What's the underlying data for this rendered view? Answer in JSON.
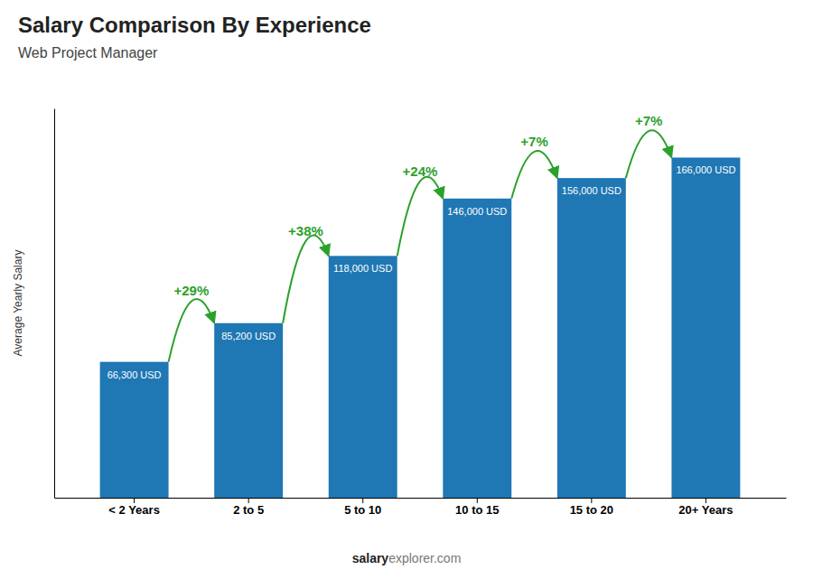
{
  "chart_data": {
    "type": "bar",
    "title": "Salary Comparison By Experience",
    "subtitle": "Web Project Manager",
    "ylabel": "Average Yearly Salary",
    "footer": [
      "salary",
      "explorer.com"
    ],
    "categories": [
      "< 2 Years",
      "2 to 5",
      "5 to 10",
      "10 to 15",
      "15 to 20",
      "20+ Years"
    ],
    "values": [
      66300,
      85200,
      118000,
      146000,
      156000,
      166000
    ],
    "value_labels": [
      "66,300 USD",
      "85,200 USD",
      "118,000 USD",
      "146,000 USD",
      "156,000 USD",
      "166,000 USD"
    ],
    "annotations": [
      "+29%",
      "+38%",
      "+24%",
      "+7%",
      "+7%"
    ],
    "ylim": [
      0,
      190000
    ],
    "tick_labels": "x"
  }
}
